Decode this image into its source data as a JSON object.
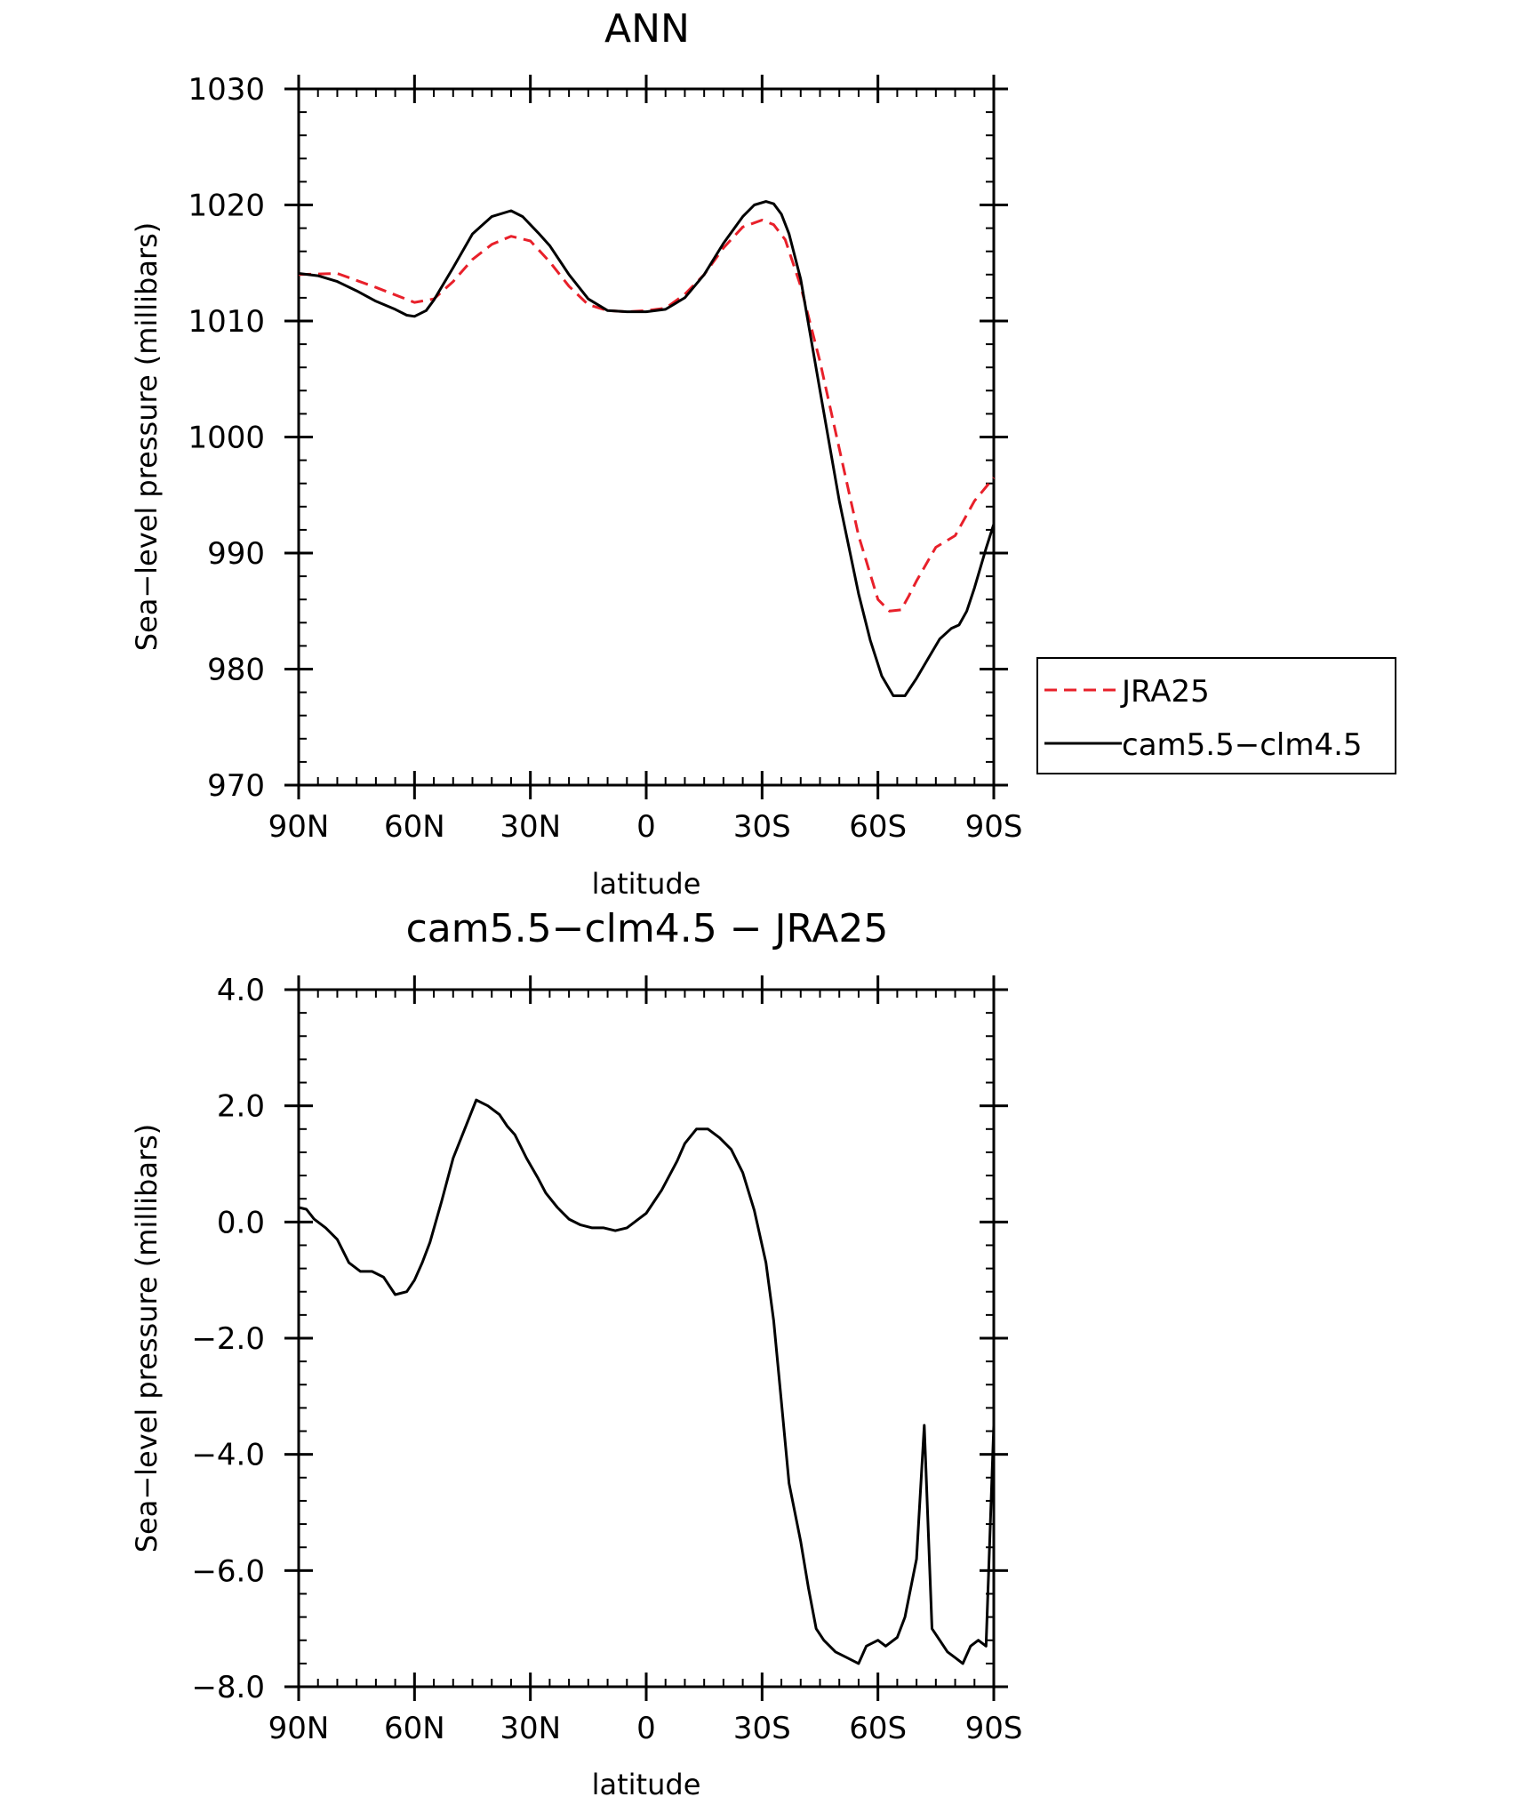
{
  "chart_data": [
    {
      "type": "line",
      "title": "ANN",
      "xlabel": "latitude",
      "ylabel": "Sea-level pressure (millibars)",
      "ylim": [
        970,
        1030
      ],
      "xlim": [
        90,
        -90
      ],
      "x_tick_labels": [
        "90N",
        "60N",
        "30N",
        "0",
        "30S",
        "60S",
        "90S"
      ],
      "y_tick_labels": [
        "970",
        "980",
        "990",
        "1000",
        "1010",
        "1020",
        "1030"
      ],
      "legend_position": "right",
      "series": [
        {
          "name": "JRA25",
          "color": "#e8202a",
          "dash": true,
          "x": [
            90,
            80,
            70,
            60,
            55,
            50,
            45,
            40,
            35,
            30,
            25,
            20,
            15,
            10,
            5,
            0,
            -5,
            -10,
            -15,
            -20,
            -25,
            -30,
            -33,
            -36,
            -40,
            -45,
            -50,
            -55,
            -60,
            -63,
            -66,
            -68,
            -70,
            -75,
            -80,
            -85,
            -90
          ],
          "y": [
            1014.0,
            1014.1,
            1012.9,
            1011.6,
            1011.9,
            1013.4,
            1015.3,
            1016.6,
            1017.3,
            1016.9,
            1015.1,
            1013.0,
            1011.4,
            1010.9,
            1010.8,
            1010.9,
            1011.1,
            1012.3,
            1014.0,
            1016.3,
            1018.1,
            1018.7,
            1018.3,
            1017.0,
            1013.0,
            1006.5,
            999.0,
            991.5,
            986.0,
            985.0,
            985.1,
            986.3,
            987.6,
            990.5,
            991.5,
            994.5,
            996.5
          ]
        },
        {
          "name": "cam5.5-clm4.5",
          "color": "#000000",
          "dash": false,
          "x": [
            90,
            85,
            80,
            75,
            70,
            65,
            62,
            60,
            57,
            55,
            50,
            45,
            40,
            35,
            32,
            28,
            25,
            20,
            15,
            10,
            5,
            0,
            -5,
            -10,
            -15,
            -20,
            -25,
            -28,
            -31,
            -33,
            -35,
            -37,
            -40,
            -45,
            -50,
            -55,
            -58,
            -61,
            -64,
            -67,
            -70,
            -73,
            -76,
            -79,
            -81,
            -83,
            -85,
            -88,
            -90
          ],
          "y": [
            1014.1,
            1013.9,
            1013.4,
            1012.6,
            1011.7,
            1011.0,
            1010.5,
            1010.4,
            1010.9,
            1011.8,
            1014.6,
            1017.5,
            1019.0,
            1019.5,
            1019.0,
            1017.6,
            1016.5,
            1014.0,
            1011.9,
            1010.9,
            1010.8,
            1010.8,
            1011.0,
            1012.0,
            1014.0,
            1016.7,
            1019.0,
            1020.0,
            1020.3,
            1020.1,
            1019.2,
            1017.5,
            1013.6,
            1004.0,
            994.5,
            986.5,
            982.5,
            979.4,
            977.7,
            977.7,
            979.2,
            980.9,
            982.6,
            983.5,
            983.8,
            985.0,
            987.0,
            990.4,
            992.5
          ]
        }
      ]
    },
    {
      "type": "line",
      "title": "cam5.5-clm4.5 - JRA25",
      "xlabel": "latitude",
      "ylabel": "Sea-level pressure (millibars)",
      "ylim": [
        -8.0,
        4.0
      ],
      "xlim": [
        90,
        -90
      ],
      "x_tick_labels": [
        "90N",
        "60N",
        "30N",
        "0",
        "30S",
        "60S",
        "90S"
      ],
      "y_tick_labels": [
        "-8.0",
        "-6.0",
        "-4.0",
        "-2.0",
        "0.0",
        "2.0",
        "4.0"
      ],
      "series": [
        {
          "name": "",
          "color": "#000000",
          "dash": false,
          "x": [
            90,
            88,
            86,
            83,
            80,
            77,
            74,
            71,
            68,
            65,
            62,
            60,
            58,
            56,
            53,
            50,
            47,
            44,
            41,
            38,
            36,
            34,
            31,
            28,
            26,
            23,
            20,
            17,
            14,
            11,
            8,
            5,
            2,
            0,
            -2,
            -4,
            -6,
            -8,
            -10,
            -13,
            -16,
            -19,
            -22,
            -25,
            -28,
            -31,
            -33,
            -35,
            -37,
            -40,
            -42,
            -44,
            -46,
            -49,
            -52,
            -55,
            -57,
            -60,
            -62,
            -65,
            -67,
            -70,
            -72,
            -74,
            -76,
            -78,
            -80,
            -82,
            -84,
            -86,
            -88,
            -90
          ],
          "y": [
            0.25,
            0.22,
            0.05,
            -0.1,
            -0.3,
            -0.7,
            -0.85,
            -0.85,
            -0.95,
            -1.25,
            -1.2,
            -1.0,
            -0.7,
            -0.35,
            0.35,
            1.1,
            1.6,
            2.1,
            2.0,
            1.85,
            1.65,
            1.5,
            1.1,
            0.75,
            0.5,
            0.25,
            0.05,
            -0.05,
            -0.1,
            -0.1,
            -0.15,
            -0.1,
            0.05,
            0.15,
            0.35,
            0.55,
            0.8,
            1.05,
            1.35,
            1.6,
            1.6,
            1.45,
            1.25,
            0.85,
            0.2,
            -0.7,
            -1.7,
            -3.1,
            -4.5,
            -5.5,
            -6.3,
            -7.0,
            -7.2,
            -7.4,
            -7.5,
            -7.6,
            -7.3,
            -7.2,
            -7.3,
            -7.15,
            -6.8,
            -5.8,
            -3.5,
            -7.0,
            -7.2,
            -7.4,
            -7.5,
            -7.6,
            -7.3,
            -7.2,
            -7.3,
            -3.5
          ],
          "_note": ""
        }
      ]
    }
  ]
}
